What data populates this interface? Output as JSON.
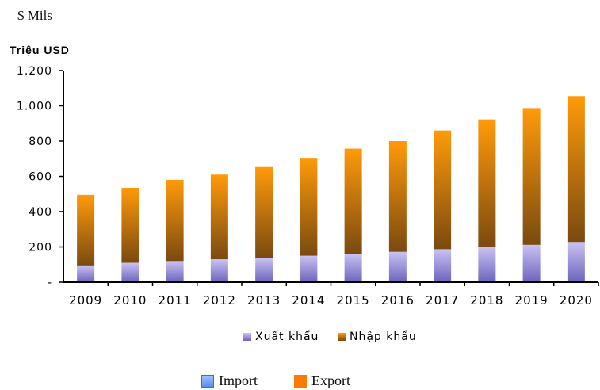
{
  "top_note": "$ Mils",
  "chart_data": {
    "type": "bar",
    "stacked": true,
    "ylabel": "Triệu USD",
    "categories": [
      "2009",
      "2010",
      "2011",
      "2012",
      "2013",
      "2014",
      "2015",
      "2016",
      "2017",
      "2018",
      "2019",
      "2020"
    ],
    "series": [
      {
        "name": "Xuất khẩu",
        "values": [
          95,
          110,
          120,
          130,
          138,
          150,
          160,
          172,
          187,
          198,
          212,
          228
        ]
      },
      {
        "name": "Nhập khẩu",
        "values": [
          400,
          425,
          460,
          480,
          515,
          555,
          597,
          628,
          673,
          725,
          775,
          827
        ]
      }
    ],
    "ylim": [
      0,
      1200
    ],
    "yticks": [
      0,
      200,
      400,
      600,
      800,
      1000,
      1200
    ],
    "ytick_labels": [
      "-",
      "200",
      "400",
      "600",
      "800",
      "1.000",
      "1.200"
    ],
    "legend_position": "bottom",
    "colors": {
      "xuat_khau": "#8f86d6",
      "nhap_khau": "#e88a00"
    }
  },
  "bottom_legend": {
    "import_label": "Import",
    "export_label": "Export",
    "import_color": "#6b9bee",
    "export_color": "#ff7a00"
  }
}
